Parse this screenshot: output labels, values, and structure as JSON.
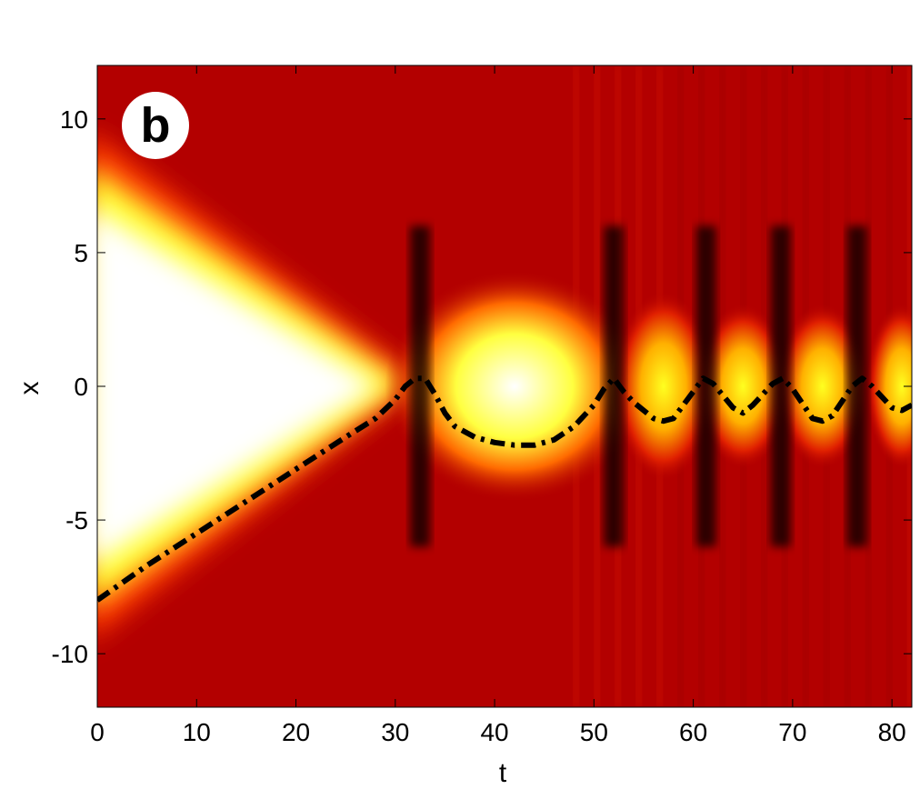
{
  "chart_data": {
    "type": "heatmap",
    "panel_label": "b",
    "title": "",
    "xlabel": "t",
    "ylabel": "x",
    "xlim": [
      0,
      82
    ],
    "ylim": [
      -12,
      12
    ],
    "xticks": [
      0,
      10,
      20,
      30,
      40,
      50,
      60,
      70,
      80
    ],
    "xtick_labels": [
      "0",
      "10",
      "20",
      "30",
      "40",
      "50",
      "60",
      "70",
      "80"
    ],
    "yticks": [
      10,
      5,
      0,
      -5,
      -10
    ],
    "ytick_labels": [
      "10",
      "5",
      "0",
      "-5",
      "-10"
    ],
    "colormap": [
      "#000000",
      "#b30000",
      "#ff2a00",
      "#ffff00",
      "#ffffff"
    ],
    "background_color": "#b30000",
    "grid": false,
    "legend": "none",
    "trajectory": {
      "style": "dash-dot",
      "color": "#000000",
      "t": [
        0,
        5,
        10,
        15,
        20,
        25,
        28,
        30,
        31,
        32,
        33,
        34,
        35,
        36,
        38,
        40,
        42,
        44,
        46,
        48,
        50,
        51,
        52,
        53,
        54,
        56,
        57,
        58,
        60,
        61,
        62,
        64,
        65,
        66,
        68,
        69,
        70,
        72,
        73,
        74,
        76,
        77,
        78,
        80,
        81,
        82
      ],
      "x": [
        -8.0,
        -6.7,
        -5.5,
        -4.3,
        -3.1,
        -1.9,
        -1.2,
        -0.5,
        0.0,
        0.3,
        0.3,
        -0.3,
        -1.0,
        -1.5,
        -1.9,
        -2.1,
        -2.2,
        -2.2,
        -2.0,
        -1.5,
        -0.7,
        -0.1,
        0.3,
        -0.2,
        -0.6,
        -1.2,
        -1.3,
        -1.2,
        -0.2,
        0.3,
        0.1,
        -0.8,
        -1.0,
        -0.7,
        0.1,
        0.3,
        -0.1,
        -1.2,
        -1.3,
        -1.1,
        0.0,
        0.3,
        0.0,
        -0.8,
        -0.9,
        -0.7
      ]
    },
    "bright_regions": [
      {
        "t_range": [
          0,
          30
        ],
        "x_range": [
          -8,
          8
        ],
        "peak": "white",
        "shape": "wedge"
      },
      {
        "t_center": 42,
        "x_center": 0.0,
        "t_halfwidth": 9,
        "x_halfwidth": 2.8,
        "peak": "white"
      },
      {
        "t_center": 57,
        "x_center": 0.0,
        "t_halfwidth": 3.5,
        "x_halfwidth": 2.3,
        "peak": "yellow"
      },
      {
        "t_center": 65,
        "x_center": 0.0,
        "t_halfwidth": 3.2,
        "x_halfwidth": 2.0,
        "peak": "yellow"
      },
      {
        "t_center": 73,
        "x_center": 0.0,
        "t_halfwidth": 3.2,
        "x_halfwidth": 2.0,
        "peak": "yellow"
      },
      {
        "t_center": 81,
        "x_center": 0.0,
        "t_halfwidth": 2.5,
        "x_halfwidth": 2.0,
        "peak": "yellow"
      }
    ],
    "dark_fringes_t": [
      32.5,
      52.0,
      61.3,
      68.8,
      76.5
    ]
  }
}
